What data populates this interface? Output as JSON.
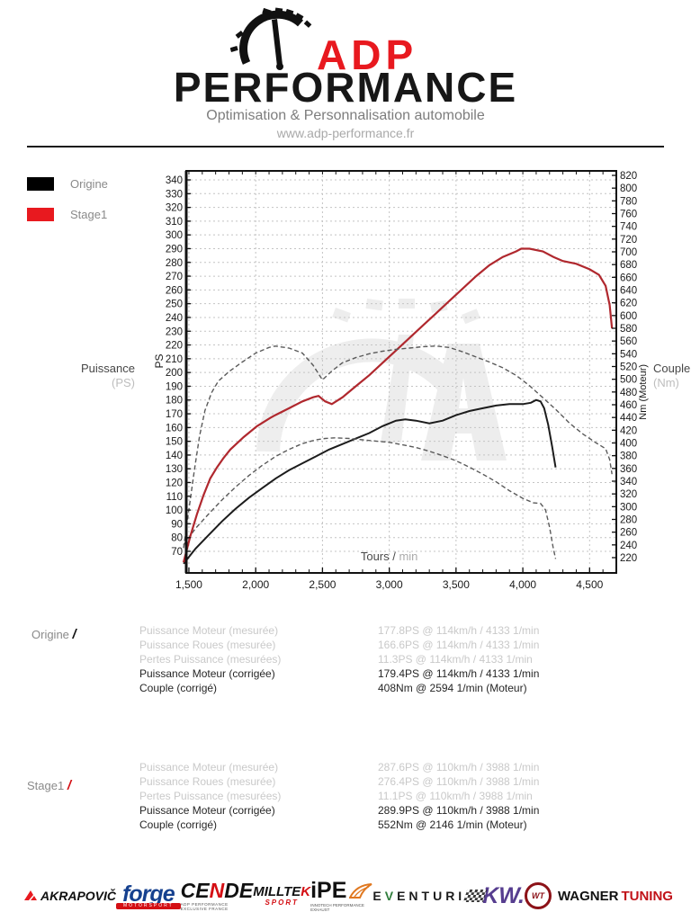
{
  "header": {
    "brand_adp": "ADP",
    "brand_performance": "PERFORMANCE",
    "tagline": "Optimisation & Personnalisation automobile",
    "website": "www.adp-performance.fr"
  },
  "legend": [
    {
      "label": "Origine",
      "color": "#000000"
    },
    {
      "label": "Stage1",
      "color": "#e8191f"
    }
  ],
  "chart_data": {
    "type": "line",
    "grid": "dashed",
    "legend_position": "outside-top-left",
    "x_axis": {
      "label_dark": "Tours /",
      "label_gray": "min",
      "range": [
        1480,
        4700
      ],
      "minor_step": 100,
      "ticks": [
        {
          "v": 1500,
          "label": "1,500"
        },
        {
          "v": 2000,
          "label": "2,000"
        },
        {
          "v": 2500,
          "label": "2,500"
        },
        {
          "v": 3000,
          "label": "3,000"
        },
        {
          "v": 3500,
          "label": "3,500"
        },
        {
          "v": 4000,
          "label": "4,000"
        },
        {
          "v": 4500,
          "label": "4,500"
        }
      ]
    },
    "y_left": {
      "caption": "Puissance",
      "caption_unit": "(PS)",
      "axis_label": "PS",
      "ticks": [
        70,
        80,
        90,
        100,
        110,
        120,
        130,
        140,
        150,
        160,
        170,
        180,
        190,
        200,
        210,
        220,
        230,
        240,
        250,
        260,
        270,
        280,
        290,
        300,
        310,
        320,
        330,
        340
      ]
    },
    "y_right": {
      "caption": "Couple",
      "caption_unit": "(Nm)",
      "axis_label": "Nm (Moteur)",
      "ticks": [
        220,
        240,
        260,
        280,
        300,
        320,
        340,
        360,
        380,
        400,
        420,
        440,
        460,
        480,
        500,
        520,
        540,
        560,
        580,
        600,
        620,
        640,
        660,
        680,
        700,
        720,
        740,
        760,
        780,
        800,
        820
      ]
    },
    "series": [
      {
        "name": "Origine Puissance (PS)",
        "axis": "left",
        "style": "solid",
        "color": "#1c1c1c",
        "width": 2,
        "points": [
          [
            1460,
            61
          ],
          [
            1550,
            72
          ],
          [
            1650,
            82
          ],
          [
            1750,
            92
          ],
          [
            1850,
            101
          ],
          [
            1950,
            109
          ],
          [
            2050,
            116
          ],
          [
            2150,
            123
          ],
          [
            2250,
            129
          ],
          [
            2350,
            134
          ],
          [
            2450,
            139
          ],
          [
            2550,
            144
          ],
          [
            2650,
            148
          ],
          [
            2750,
            152
          ],
          [
            2850,
            156
          ],
          [
            2950,
            161
          ],
          [
            3050,
            165
          ],
          [
            3120,
            166
          ],
          [
            3200,
            165
          ],
          [
            3300,
            163
          ],
          [
            3400,
            165
          ],
          [
            3500,
            169
          ],
          [
            3600,
            172
          ],
          [
            3700,
            174
          ],
          [
            3800,
            176
          ],
          [
            3900,
            177
          ],
          [
            4000,
            177
          ],
          [
            4060,
            178
          ],
          [
            4100,
            180
          ],
          [
            4133,
            179
          ],
          [
            4160,
            174
          ],
          [
            4190,
            162
          ],
          [
            4220,
            146
          ],
          [
            4245,
            131
          ]
        ]
      },
      {
        "name": "Origine Couple (Nm)",
        "axis": "right",
        "style": "dashed",
        "color": "#5a5a5a",
        "width": 1.4,
        "points": [
          [
            1460,
            240
          ],
          [
            1550,
            266
          ],
          [
            1650,
            289
          ],
          [
            1750,
            311
          ],
          [
            1850,
            331
          ],
          [
            1950,
            349
          ],
          [
            2050,
            365
          ],
          [
            2150,
            379
          ],
          [
            2250,
            390
          ],
          [
            2350,
            399
          ],
          [
            2450,
            405
          ],
          [
            2520,
            407
          ],
          [
            2594,
            408
          ],
          [
            2700,
            407
          ],
          [
            2800,
            405
          ],
          [
            2900,
            403
          ],
          [
            3000,
            401
          ],
          [
            3100,
            397
          ],
          [
            3200,
            393
          ],
          [
            3300,
            387
          ],
          [
            3400,
            380
          ],
          [
            3500,
            372
          ],
          [
            3600,
            362
          ],
          [
            3700,
            351
          ],
          [
            3800,
            339
          ],
          [
            3900,
            325
          ],
          [
            4000,
            313
          ],
          [
            4080,
            306
          ],
          [
            4133,
            305
          ],
          [
            4170,
            295
          ],
          [
            4200,
            268
          ],
          [
            4225,
            238
          ],
          [
            4245,
            218
          ]
        ]
      },
      {
        "name": "Stage1 Puissance (PS)",
        "axis": "left",
        "style": "solid",
        "color": "#b0282e",
        "width": 2.2,
        "points": [
          [
            1460,
            62
          ],
          [
            1510,
            81
          ],
          [
            1560,
            97
          ],
          [
            1610,
            111
          ],
          [
            1660,
            123
          ],
          [
            1710,
            131
          ],
          [
            1760,
            138
          ],
          [
            1810,
            144
          ],
          [
            1910,
            153
          ],
          [
            2010,
            161
          ],
          [
            2110,
            167
          ],
          [
            2146,
            169
          ],
          [
            2250,
            174
          ],
          [
            2350,
            179
          ],
          [
            2430,
            182
          ],
          [
            2470,
            183
          ],
          [
            2520,
            179
          ],
          [
            2570,
            177
          ],
          [
            2650,
            182
          ],
          [
            2750,
            190
          ],
          [
            2850,
            198
          ],
          [
            2950,
            207
          ],
          [
            3050,
            216
          ],
          [
            3150,
            225
          ],
          [
            3250,
            234
          ],
          [
            3350,
            243
          ],
          [
            3450,
            252
          ],
          [
            3550,
            261
          ],
          [
            3650,
            270
          ],
          [
            3750,
            278
          ],
          [
            3850,
            284
          ],
          [
            3950,
            288
          ],
          [
            3988,
            290
          ],
          [
            4050,
            290
          ],
          [
            4150,
            288
          ],
          [
            4230,
            284
          ],
          [
            4300,
            281
          ],
          [
            4400,
            279
          ],
          [
            4500,
            275
          ],
          [
            4570,
            271
          ],
          [
            4620,
            263
          ],
          [
            4650,
            249
          ],
          [
            4668,
            232
          ]
        ]
      },
      {
        "name": "Stage1 Couple (Nm)",
        "axis": "right",
        "style": "dashed",
        "color": "#5a5a5a",
        "width": 1.4,
        "points": [
          [
            1460,
            235
          ],
          [
            1500,
            296
          ],
          [
            1540,
            356
          ],
          [
            1580,
            411
          ],
          [
            1620,
            451
          ],
          [
            1670,
            479
          ],
          [
            1720,
            497
          ],
          [
            1800,
            512
          ],
          [
            1900,
            527
          ],
          [
            2000,
            541
          ],
          [
            2100,
            550
          ],
          [
            2146,
            552
          ],
          [
            2250,
            549
          ],
          [
            2350,
            541
          ],
          [
            2430,
            522
          ],
          [
            2500,
            499
          ],
          [
            2570,
            513
          ],
          [
            2650,
            526
          ],
          [
            2750,
            534
          ],
          [
            2850,
            540
          ],
          [
            2950,
            544
          ],
          [
            3050,
            547
          ],
          [
            3150,
            549
          ],
          [
            3250,
            551
          ],
          [
            3350,
            552
          ],
          [
            3450,
            550
          ],
          [
            3550,
            543
          ],
          [
            3650,
            535
          ],
          [
            3750,
            527
          ],
          [
            3850,
            518
          ],
          [
            3950,
            506
          ],
          [
            4050,
            490
          ],
          [
            4150,
            471
          ],
          [
            4250,
            452
          ],
          [
            4350,
            431
          ],
          [
            4450,
            414
          ],
          [
            4550,
            400
          ],
          [
            4620,
            391
          ],
          [
            4650,
            374
          ],
          [
            4668,
            351
          ]
        ]
      }
    ]
  },
  "results": [
    {
      "group": "Origine",
      "slash": "/",
      "slash_color": "#111111",
      "rows": [
        {
          "label": "Puissance Moteur (mesurée)",
          "value": "177.8PS @ 114km/h / 4133 1/min",
          "muted": true
        },
        {
          "label": "Puissance Roues (mesurée)",
          "value": "166.6PS @ 114km/h / 4133 1/min",
          "muted": true
        },
        {
          "label": "Pertes Puissance (mesurées)",
          "value": "11.3PS @ 114km/h / 4133 1/min",
          "muted": true
        },
        {
          "label": "Puissance Moteur (corrigée)",
          "value": "179.4PS @ 114km/h / 4133 1/min",
          "muted": false
        },
        {
          "label": "Couple (corrigé)",
          "value": "408Nm @ 2594 1/min (Moteur)",
          "muted": false
        }
      ]
    },
    {
      "group": "Stage1",
      "slash": "/",
      "slash_color": "#d40f14",
      "rows": [
        {
          "label": "Puissance Moteur (mesurée)",
          "value": "287.6PS @ 110km/h / 3988 1/min",
          "muted": true
        },
        {
          "label": "Puissance Roues (mesurée)",
          "value": "276.4PS @ 110km/h / 3988 1/min",
          "muted": true
        },
        {
          "label": "Pertes Puissance (mesurées)",
          "value": "11.1PS @ 110km/h / 3988 1/min",
          "muted": true
        },
        {
          "label": "Puissance Moteur (corrigée)",
          "value": "289.9PS @ 110km/h / 3988 1/min",
          "muted": false
        },
        {
          "label": "Couple (corrigé)",
          "value": "552Nm @ 2146 1/min (Moteur)",
          "muted": false
        }
      ]
    }
  ],
  "footer": {
    "brands": [
      {
        "pre": "AKRAPOVIČ",
        "accent": "",
        "post": "",
        "sub": "",
        "accent_color": "#e8191f"
      },
      {
        "pre": "forge",
        "accent": "",
        "post": "",
        "sub": "MOTORSPORT",
        "text_color": "#16418f"
      },
      {
        "pre": "CE",
        "accent": "N",
        "post": "DE",
        "sub": "ADP PERFORMANCE EXCLUSIVE FRANCE",
        "accent_color": "#d40f14"
      },
      {
        "pre": "MILLTE",
        "accent": "K",
        "post": "",
        "sub": "SPORT",
        "accent_color": "#d40f14"
      },
      {
        "pre": "iPE",
        "accent": "",
        "post": "",
        "sub": "INNOTECH PERFORMANCE EXHAUST",
        "accent_color": "#e07820"
      },
      {
        "pre": "E",
        "accent": "V",
        "post": "ENTURI",
        "sub": "",
        "accent_color": "#2f7d3b"
      },
      {
        "pre": "KW.",
        "accent": "",
        "post": "",
        "sub": "",
        "text_color": "#563d8f"
      },
      {
        "pre": "WAGNER",
        "accent": "TUNING",
        "post": "",
        "sub": "",
        "accent_color": "#c11218",
        "icon_text": "WT"
      }
    ]
  }
}
